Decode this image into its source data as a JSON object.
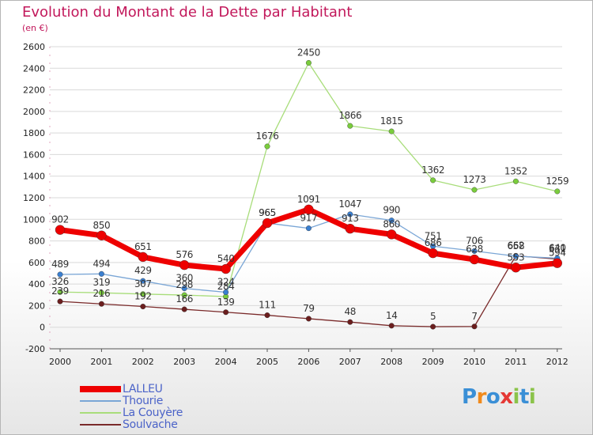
{
  "header": {
    "title": "Evolution du Montant de la Dette par Habitant",
    "subtitle": "(en €)"
  },
  "logo": {
    "letters": [
      "P",
      "r",
      "o",
      "x",
      "i",
      "t",
      "i"
    ],
    "colors": [
      "#3a8fd6",
      "#f08a1c",
      "#3a8fd6",
      "#e53935",
      "#8bc34a",
      "#3a8fd6",
      "#8bc34a"
    ]
  },
  "chart_data": {
    "type": "line",
    "title": "Evolution du Montant de la Dette par Habitant",
    "ylabel": "(en €)",
    "xlabel": "",
    "x": [
      "2000",
      "2001",
      "2002",
      "2003",
      "2004",
      "2005",
      "2006",
      "2007",
      "2008",
      "2009",
      "2010",
      "2011",
      "2012"
    ],
    "ylim": [
      -200,
      2600
    ],
    "yticks": [
      -200,
      0,
      200,
      400,
      600,
      800,
      1000,
      1200,
      1400,
      1600,
      1800,
      2000,
      2200,
      2400,
      2600
    ],
    "grid": "horizontal",
    "legend_position": "bottom-left",
    "series": [
      {
        "name": "LALLEU",
        "color": "#ee0000",
        "point_color": "#ee0000",
        "width": 7,
        "radius": 6,
        "values": [
          902,
          850,
          651,
          576,
          540,
          965,
          1091,
          913,
          860,
          686,
          628,
          553,
          594
        ],
        "labels": [
          "902",
          "850",
          "651",
          "576",
          "540",
          "965",
          "1091",
          "913",
          "860",
          "686",
          "628",
          "553",
          "594"
        ]
      },
      {
        "name": "Thourie",
        "color": "#7aa6d6",
        "point_color": "#3a7fd0",
        "width": 1.3,
        "radius": 3.3,
        "values": [
          489,
          494,
          429,
          360,
          324,
          965,
          917,
          1047,
          990,
          751,
          706,
          658,
          640
        ],
        "labels": [
          "489",
          "494",
          "429",
          "360",
          "324",
          "965",
          "917",
          "1047",
          "990",
          "751",
          "706",
          "658",
          "640"
        ]
      },
      {
        "name": "La Couyère",
        "color": "#a8dd7a",
        "point_color": "#7acd3c",
        "width": 1.3,
        "radius": 3.3,
        "values": [
          326,
          319,
          307,
          298,
          284,
          1676,
          2450,
          1866,
          1815,
          1362,
          1273,
          1352,
          1259
        ],
        "labels": [
          "326",
          "319",
          "307",
          "298",
          "284",
          "1676",
          "2450",
          "1866",
          "1815",
          "1362",
          "1273",
          "1352",
          "1259"
        ]
      },
      {
        "name": "Soulvache",
        "color": "#7a2a2a",
        "point_color": "#6b1e1e",
        "width": 1.3,
        "radius": 3.3,
        "values": [
          239,
          216,
          192,
          166,
          139,
          111,
          79,
          48,
          14,
          5,
          7,
          662,
          631
        ],
        "labels": [
          "239",
          "216",
          "192",
          "166",
          "139",
          "111",
          "79",
          "48",
          "14",
          "5",
          "7",
          "662",
          "631"
        ]
      }
    ]
  }
}
